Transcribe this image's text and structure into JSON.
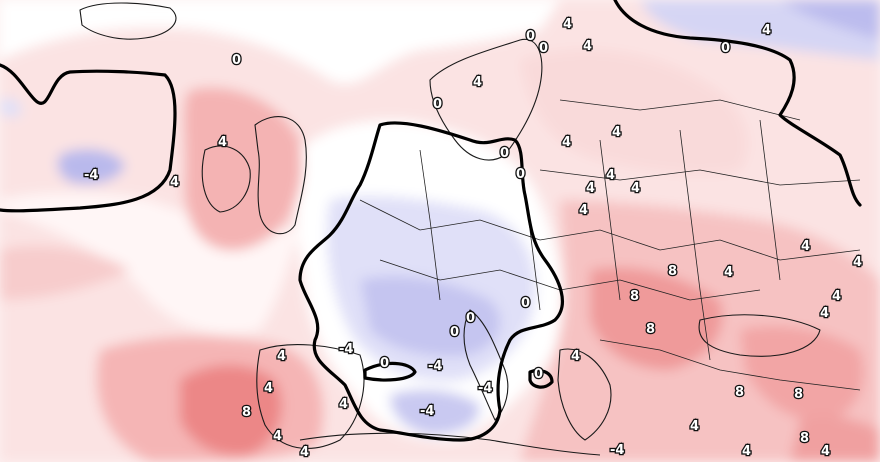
{
  "map": {
    "type": "temperature-anomaly-map",
    "colors": {
      "positive_light": "#f7d4d4",
      "positive_mid": "#f3a9a9",
      "positive_strong": "#ec7a7a",
      "neutral": "#ffffff",
      "negative_light": "#dcdcf6",
      "negative_mid": "#b9b9ee",
      "zero_contour": "#000000",
      "coastline": "#1a1a1a"
    },
    "contour_levels": [
      -4,
      0,
      4,
      8
    ],
    "labels": [
      {
        "id": "l1",
        "text": "0"
      },
      {
        "id": "l2",
        "text": "0"
      },
      {
        "id": "l3",
        "text": "0"
      },
      {
        "id": "l4",
        "text": "4"
      },
      {
        "id": "l5",
        "text": "0"
      },
      {
        "id": "l6",
        "text": "4"
      },
      {
        "id": "l7",
        "text": "0"
      },
      {
        "id": "l8",
        "text": "4"
      },
      {
        "id": "l9",
        "text": "-4"
      },
      {
        "id": "l10",
        "text": "4"
      },
      {
        "id": "l11",
        "text": "4"
      },
      {
        "id": "l12",
        "text": "0"
      },
      {
        "id": "l13",
        "text": "4"
      },
      {
        "id": "l14",
        "text": "0"
      },
      {
        "id": "l15",
        "text": "4"
      },
      {
        "id": "l16",
        "text": "4"
      },
      {
        "id": "l17",
        "text": "4"
      },
      {
        "id": "l18",
        "text": "4"
      },
      {
        "id": "l19",
        "text": "4"
      },
      {
        "id": "l20",
        "text": "4"
      },
      {
        "id": "l21",
        "text": "4"
      },
      {
        "id": "l22",
        "text": "8"
      },
      {
        "id": "l23",
        "text": "4"
      },
      {
        "id": "l24",
        "text": "8"
      },
      {
        "id": "l25",
        "text": "4"
      },
      {
        "id": "l26",
        "text": "8"
      },
      {
        "id": "l27",
        "text": "4"
      },
      {
        "id": "l28",
        "text": "0"
      },
      {
        "id": "l29",
        "text": "0"
      },
      {
        "id": "l30",
        "text": "0"
      },
      {
        "id": "l31",
        "text": "-4"
      },
      {
        "id": "l32",
        "text": "0"
      },
      {
        "id": "l33",
        "text": "-4"
      },
      {
        "id": "l34",
        "text": "-4"
      },
      {
        "id": "l35",
        "text": "4"
      },
      {
        "id": "l36",
        "text": "4"
      },
      {
        "id": "l37",
        "text": "-4"
      },
      {
        "id": "l38",
        "text": "0"
      },
      {
        "id": "l39",
        "text": "4"
      },
      {
        "id": "l40",
        "text": "4"
      },
      {
        "id": "l41",
        "text": "4"
      },
      {
        "id": "l42",
        "text": "8"
      },
      {
        "id": "l43",
        "text": "4"
      },
      {
        "id": "l44",
        "text": "8"
      },
      {
        "id": "l45",
        "text": "8"
      },
      {
        "id": "l46",
        "text": "4"
      },
      {
        "id": "l47",
        "text": "8"
      },
      {
        "id": "l48",
        "text": "4"
      },
      {
        "id": "l49",
        "text": "-4"
      },
      {
        "id": "l50",
        "text": "4"
      },
      {
        "id": "l51",
        "text": "4"
      }
    ]
  }
}
